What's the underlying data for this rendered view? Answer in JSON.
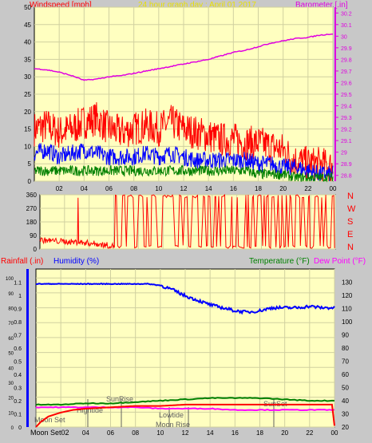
{
  "colors": {
    "background": "#c8c8c8",
    "plot_bg": "#ffffc0",
    "grid": "#d0d0a0",
    "wind_gust": "#ff0000",
    "wind_avg": "#0000ff",
    "wind_low": "#008000",
    "barometer": "#e000e0",
    "wind_dir": "#ff0000",
    "humidity": "#0000ff",
    "temperature": "#008000",
    "dew_point": "#ff00ff",
    "rainfall": "#ff0000",
    "header_title": "#e8e000",
    "annotation": "#606060"
  },
  "header": {
    "left_label": "Windspeed [mph]",
    "title": "24 hour graph day : April 01 2017",
    "right_label": "Barometer [.in]"
  },
  "x_ticks": [
    "02",
    "04",
    "06",
    "08",
    "10",
    "12",
    "14",
    "16",
    "18",
    "20",
    "22",
    "00"
  ],
  "wind_dir_labels": [
    "N",
    "W",
    "S",
    "E",
    "N"
  ],
  "bottom_labels": {
    "rainfall": "Rainfall (.in)",
    "humidity": "Humidity (%)",
    "temperature": "Temperature (°F)",
    "dew_point": "Dew Point (°F)"
  },
  "annotations": {
    "moon_set_top": "Moon Set",
    "moon_set_bottom": "Moon Set02",
    "hightide": "Hightide",
    "sunrise": "SunRise",
    "lowtide": "Lowtide",
    "moon_rise": "Moon Rise",
    "sunset": "SunSet"
  },
  "chart_data": [
    {
      "type": "line",
      "panel": "wind_barometer",
      "x_hours": [
        0,
        24
      ],
      "xticks": [
        "02",
        "04",
        "06",
        "08",
        "10",
        "12",
        "14",
        "16",
        "18",
        "20",
        "22",
        "00"
      ],
      "y_left": {
        "label": "Windspeed [mph]",
        "ylim": [
          0,
          50
        ],
        "ticks": [
          0,
          5,
          10,
          15,
          20,
          25,
          30,
          35,
          40,
          45,
          50
        ]
      },
      "y_right": {
        "label": "Barometer [.in]",
        "ylim": [
          28.75,
          30.25
        ],
        "ticks": [
          "28.8",
          "28.9",
          "29",
          "29.1",
          "29.2",
          "29.3",
          "29.4",
          "29.5",
          "29.6",
          "29.7",
          "29.8",
          "29.9",
          "30",
          "30.1",
          "30.2"
        ]
      },
      "series": [
        {
          "axis": "left",
          "hours": [
            0,
            1,
            2,
            3,
            4,
            5,
            6,
            7,
            8,
            9,
            10,
            11,
            12,
            13,
            14,
            15,
            16,
            17,
            18,
            19,
            20,
            21,
            22,
            23,
            24
          ],
          "values": [
            15,
            16,
            14,
            15,
            17,
            18,
            15,
            14,
            15,
            16,
            15,
            17,
            15,
            14,
            13,
            12,
            12,
            11,
            11,
            10,
            9,
            6,
            5,
            5,
            4
          ]
        },
        {
          "axis": "left",
          "hours": [
            0,
            1,
            2,
            3,
            4,
            5,
            6,
            7,
            8,
            9,
            10,
            11,
            12,
            13,
            14,
            15,
            16,
            17,
            18,
            19,
            20,
            21,
            22,
            23,
            24
          ],
          "values": [
            8,
            9,
            7,
            8,
            9,
            8,
            7,
            7,
            7,
            8,
            7,
            8,
            7,
            6,
            6,
            6,
            6,
            6,
            5,
            5,
            4,
            4,
            3,
            2,
            2
          ]
        },
        {
          "axis": "left",
          "hours": [
            0,
            1,
            2,
            3,
            4,
            5,
            6,
            7,
            8,
            9,
            10,
            11,
            12,
            13,
            14,
            15,
            16,
            17,
            18,
            19,
            20,
            21,
            22,
            23,
            24
          ],
          "values": [
            3,
            3,
            3,
            3,
            3,
            3,
            3,
            3,
            3,
            3,
            3,
            3,
            3,
            3,
            3,
            3,
            3,
            3,
            2,
            2,
            2,
            1,
            1,
            1,
            1
          ]
        },
        {
          "axis": "right",
          "hours": [
            0,
            1,
            2,
            3,
            4,
            5,
            6,
            7,
            8,
            9,
            10,
            11,
            12,
            13,
            14,
            15,
            16,
            17,
            18,
            19,
            20,
            21,
            22,
            23,
            24
          ],
          "values": [
            29.72,
            29.71,
            29.69,
            29.66,
            29.62,
            29.63,
            29.65,
            29.66,
            29.68,
            29.7,
            29.72,
            29.74,
            29.76,
            29.78,
            29.8,
            29.83,
            29.86,
            29.88,
            29.91,
            29.94,
            29.96,
            29.98,
            29.99,
            30.01,
            30.02
          ]
        }
      ]
    },
    {
      "type": "line",
      "panel": "wind_direction",
      "x_hours": [
        0,
        24
      ],
      "xticks": [
        "02",
        "04",
        "06",
        "08",
        "10",
        "12",
        "14",
        "16",
        "18",
        "20",
        "22",
        "00"
      ],
      "y": {
        "ylim": [
          0,
          360
        ],
        "ticks": [
          "0",
          "90",
          "180",
          "270",
          "360"
        ]
      },
      "direction_labels": [
        "N",
        "W",
        "S",
        "E",
        "N"
      ],
      "series": [
        {
          "hours": [
            0,
            1,
            2,
            3,
            4,
            5,
            5.8,
            6.2,
            8,
            10,
            12,
            14,
            16,
            18,
            20,
            22,
            24
          ],
          "values": [
            60,
            55,
            50,
            45,
            40,
            30,
            20,
            350,
            180,
            200,
            190,
            210,
            180,
            230,
            200,
            220,
            210
          ]
        }
      ]
    },
    {
      "type": "line",
      "panel": "rain_humidity_temperature",
      "x_hours": [
        0,
        24
      ],
      "xticks": [
        "02",
        "04",
        "06",
        "08",
        "10",
        "12",
        "14",
        "16",
        "18",
        "20",
        "22",
        "00"
      ],
      "y_left_outer": {
        "label": "Rainfall (.in)",
        "ylim": [
          0,
          1.2
        ],
        "ticks": [
          "0",
          "0.1",
          "0.2",
          "0.3",
          "0.4",
          "0.5",
          "0.6",
          "0.7",
          "0.8",
          "0.9",
          "1",
          "1.1"
        ]
      },
      "y_left_inner": {
        "label": "Humidity (%)",
        "ylim": [
          0,
          100
        ],
        "ticks": [
          "0",
          "10",
          "20",
          "30",
          "40",
          "50",
          "60",
          "70",
          "80",
          "90",
          "100"
        ]
      },
      "y_right": {
        "label": "Temperature (°F)",
        "ylim": [
          20,
          140
        ],
        "ticks": [
          "20",
          "30",
          "40",
          "50",
          "60",
          "70",
          "80",
          "90",
          "100",
          "110",
          "120",
          "130"
        ]
      },
      "series": [
        {
          "name": "Humidity (%)",
          "axis": "humidity",
          "hours": [
            0,
            2,
            4,
            6,
            8,
            9,
            10,
            11,
            12,
            13,
            14,
            15,
            16,
            17,
            18,
            19,
            20,
            21,
            22,
            23,
            24
          ],
          "values": [
            96,
            96,
            96,
            96,
            96,
            96,
            95,
            92,
            88,
            85,
            82,
            80,
            78,
            77,
            78,
            80,
            80,
            80,
            81,
            80,
            80
          ]
        },
        {
          "name": "Temperature (°F)",
          "axis": "temp",
          "hours": [
            0,
            2,
            4,
            6,
            8,
            10,
            12,
            14,
            16,
            18,
            20,
            22,
            24
          ],
          "values": [
            37,
            37,
            38,
            38,
            39,
            40,
            41,
            42,
            42,
            42,
            41,
            40,
            40
          ]
        },
        {
          "name": "Dew Point (°F)",
          "axis": "temp",
          "hours": [
            0,
            2,
            4,
            6,
            8,
            10,
            12,
            14,
            16,
            18,
            20,
            22,
            24
          ],
          "values": [
            35,
            35,
            35,
            35,
            35,
            34,
            34,
            34,
            33,
            33,
            33,
            33,
            33
          ]
        },
        {
          "name": "Rainfall (.in)",
          "axis": "rain",
          "hours": [
            0,
            0.4,
            1,
            2,
            3,
            4,
            6,
            8,
            10,
            12,
            14,
            16,
            18,
            20,
            22,
            23.8,
            24
          ],
          "values": [
            0,
            0.04,
            0.08,
            0.11,
            0.13,
            0.14,
            0.15,
            0.16,
            0.16,
            0.17,
            0.17,
            0.17,
            0.17,
            0.17,
            0.17,
            0.17,
            0.01
          ]
        }
      ]
    }
  ]
}
